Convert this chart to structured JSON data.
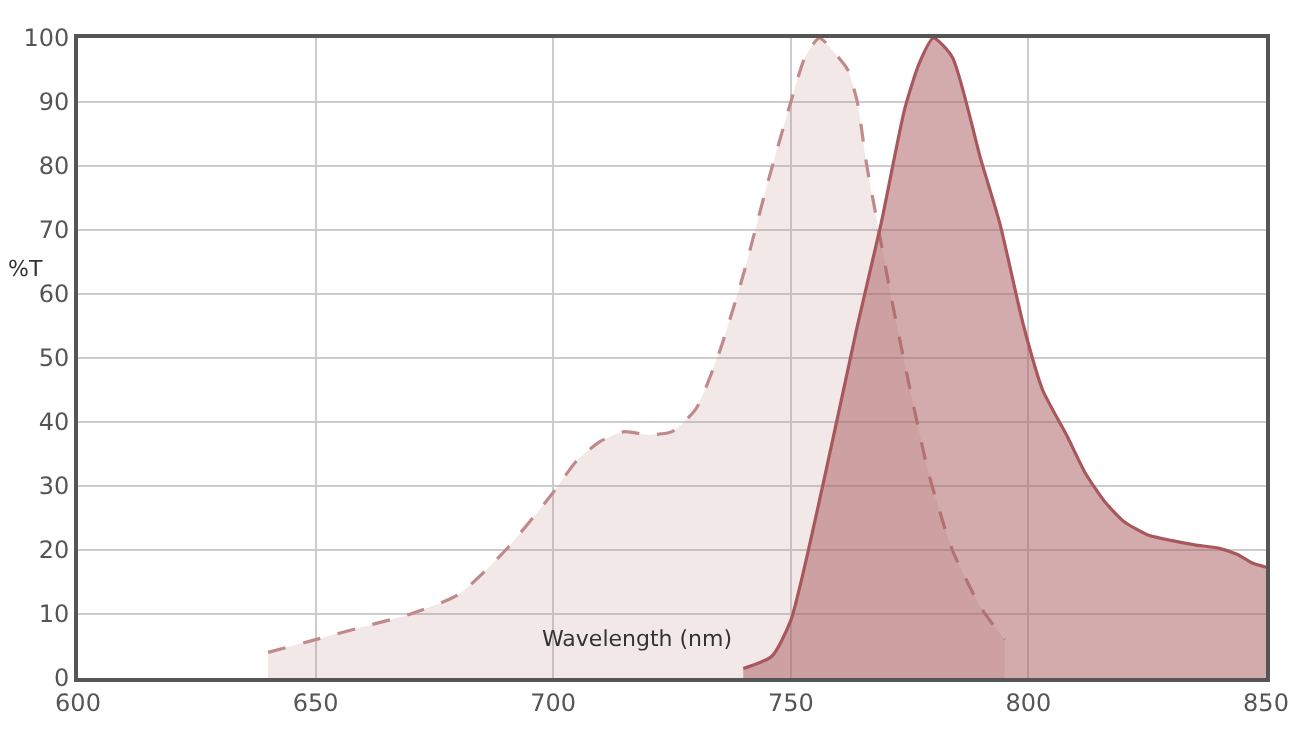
{
  "chart_data": {
    "type": "area",
    "xlabel": "Wavelength (nm)",
    "ylabel": "%T",
    "xlim": [
      600,
      850
    ],
    "ylim": [
      0,
      100
    ],
    "xticks": [
      600,
      650,
      700,
      750,
      800,
      850
    ],
    "yticks": [
      0,
      10,
      20,
      30,
      40,
      50,
      60,
      70,
      80,
      90,
      100
    ],
    "grid": true,
    "marker": "none",
    "series": [
      {
        "color": "#c08a8c",
        "line_style": "dashed",
        "x": [
          640,
          650,
          660,
          670,
          680,
          690,
          700,
          705,
          710,
          715,
          720,
          725,
          730,
          735,
          740,
          745,
          750,
          753,
          756,
          760,
          762,
          764,
          766,
          768,
          771,
          774,
          779,
          784,
          790,
          795
        ],
        "values": [
          4,
          6,
          8,
          10,
          13,
          20,
          29,
          34,
          37,
          38.5,
          38,
          38.5,
          42,
          51,
          63,
          77,
          90,
          97,
          100,
          97,
          95,
          90,
          80,
          72,
          60,
          49,
          32,
          20,
          11,
          6
        ]
      },
      {
        "color": "#a8585c",
        "line_style": "solid",
        "x": [
          740,
          746,
          750,
          757,
          764,
          769,
          774,
          777,
          780,
          784,
          790,
          794,
          799,
          803,
          808,
          812,
          816,
          820,
          825,
          830,
          835,
          840,
          844,
          847,
          850
        ],
        "values": [
          1.5,
          3.4,
          9,
          31,
          55,
          71,
          89,
          96,
          100,
          97,
          81,
          71,
          55,
          45,
          38,
          32,
          27.6,
          24.5,
          22.4,
          21.5,
          20.8,
          20.3,
          19.3,
          18,
          17.3
        ]
      }
    ]
  }
}
